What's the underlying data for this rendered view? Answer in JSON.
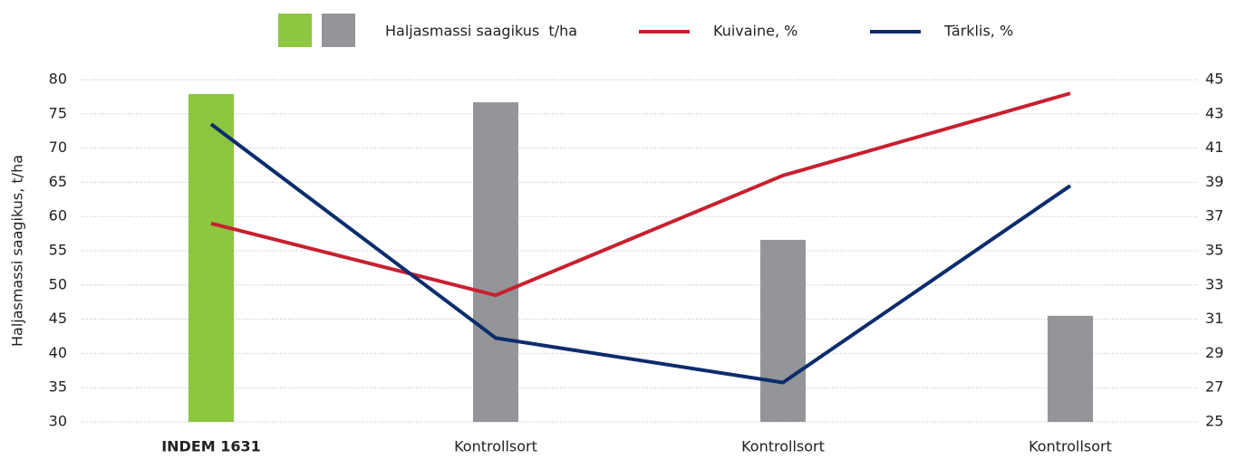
{
  "chart_data": {
    "type": "bar_line",
    "y_label": "Haljasmassi saagikus, t/ha",
    "categories": [
      "INDEM 1631",
      "Kontrollsort",
      "Kontrollsort",
      "Kontrollsort"
    ],
    "series": [
      {
        "name": "Haljasmassi saagikus  t/ha",
        "type": "bar",
        "colors": [
          "#8dc63f",
          "#939598",
          "#939598",
          "#939598"
        ],
        "values": [
          77.9,
          76.7,
          56.6,
          45.5
        ]
      },
      {
        "name": "Kuivaine, %",
        "type": "line",
        "axis": "y2",
        "color": "#c8202f",
        "values": [
          36.6,
          32.4,
          39.4,
          44.2
        ]
      },
      {
        "name": "Tärklis, %",
        "type": "line",
        "axis": "y2",
        "color": "#0d2c6c",
        "values": [
          42.4,
          29.9,
          27.3,
          38.8
        ]
      }
    ],
    "ylim": [
      30,
      80
    ],
    "yticks": [
      30,
      35,
      40,
      45,
      50,
      55,
      60,
      65,
      70,
      75,
      80
    ],
    "y2lim": [
      25,
      45
    ],
    "y2ticks": [
      25,
      27,
      29,
      31,
      33,
      35,
      37,
      39,
      41,
      43,
      45
    ],
    "grid": true
  }
}
